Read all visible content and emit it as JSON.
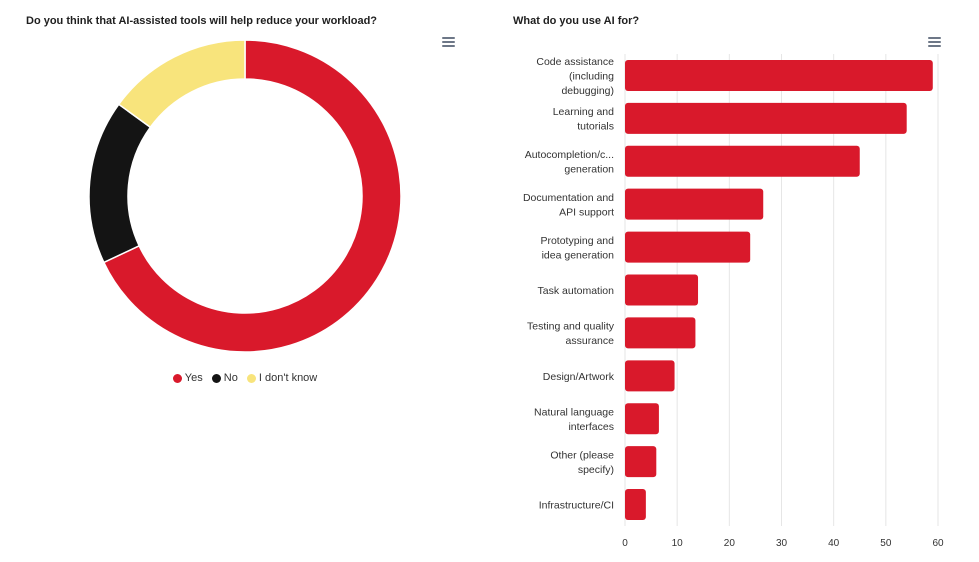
{
  "colors": {
    "accent_red": "#d9192b",
    "black": "#141414",
    "yellow": "#f8e47c",
    "grid": "#e6e6e6"
  },
  "chart_data": [
    {
      "type": "pie",
      "variant": "donut",
      "title": "Do you think that AI-assisted tools will help reduce your workload?",
      "labels": [
        "Yes",
        "No",
        "I don't know"
      ],
      "values": [
        68,
        17,
        15
      ],
      "colors": [
        "#d9192b",
        "#141414",
        "#f8e47c"
      ],
      "legend": "bottom-center"
    },
    {
      "type": "bar",
      "orientation": "horizontal",
      "title": "What do you use AI for?",
      "categories": [
        "Code assistance (including debugging)",
        "Learning and tutorials",
        "Autocompletion/c... generation",
        "Documentation and API support",
        "Prototyping and idea generation",
        "Task automation",
        "Testing and quality assurance",
        "Design/Artwork",
        "Natural language interfaces",
        "Other (please specify)",
        "Infrastructure/CI"
      ],
      "category_lines": [
        [
          "Code assistance",
          "(including",
          "debugging)"
        ],
        [
          "Learning and",
          "tutorials"
        ],
        [
          "Autocompletion/c...",
          "generation"
        ],
        [
          "Documentation and",
          "API support"
        ],
        [
          "Prototyping and",
          "idea generation"
        ],
        [
          "Task automation"
        ],
        [
          "Testing and quality",
          "assurance"
        ],
        [
          "Design/Artwork"
        ],
        [
          "Natural language",
          "interfaces"
        ],
        [
          "Other (please",
          "specify)"
        ],
        [
          "Infrastructure/CI"
        ]
      ],
      "values": [
        59,
        54,
        45,
        26.5,
        24,
        14,
        13.5,
        9.5,
        6.5,
        6,
        4
      ],
      "xlim": [
        0,
        60
      ],
      "xticks": [
        "0",
        "10",
        "20",
        "30",
        "40",
        "50",
        "60"
      ],
      "grid": true,
      "color": "#d9192b"
    }
  ]
}
